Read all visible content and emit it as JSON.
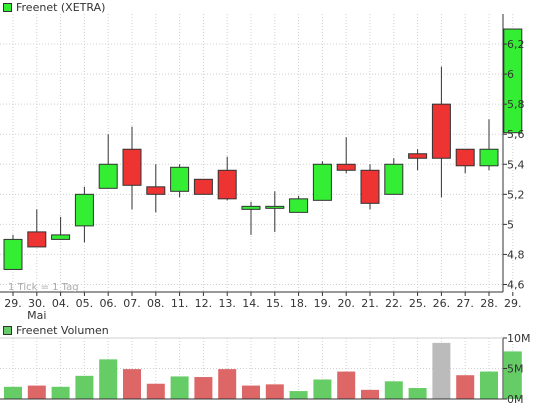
{
  "colors": {
    "up": "#33ee33",
    "down": "#ee3333",
    "volume_up": "#66cc66",
    "volume_down": "#dd6666",
    "volume_neutral": "#bbbbbb",
    "grid": "#d0d0d0",
    "axis": "#333333",
    "text": "#333333",
    "watermark": "#aaaaaa"
  },
  "watermark": "1 Tick = 1 Tag",
  "chart_data": [
    {
      "type": "candlestick",
      "legend": "Freenet (XETRA)",
      "ylim": [
        4.55,
        6.4
      ],
      "y_ticks": [
        4.6,
        4.8,
        5,
        5.2,
        5.4,
        5.6,
        5.8,
        6,
        6.2
      ],
      "y_tick_labels": [
        "4,6",
        "4,8",
        "5",
        "5,2",
        "5,4",
        "5,6",
        "5,8",
        "6",
        "6,2"
      ],
      "grid": true,
      "x_tick_labels": [
        "29.",
        "30.",
        "04.",
        "05.",
        "06.",
        "07.",
        "08.",
        "11.",
        "12.",
        "13.",
        "14.",
        "15.",
        "18.",
        "19.",
        "20.",
        "21.",
        "22.",
        "25.",
        "26.",
        "27.",
        "28.",
        "29."
      ],
      "x_sublabel": "Mai",
      "x_sublabel_index": 1,
      "candles": [
        {
          "open": 4.7,
          "close": 4.9,
          "high": 4.93,
          "low": 4.7
        },
        {
          "open": 4.95,
          "close": 4.85,
          "high": 5.1,
          "low": 4.85
        },
        {
          "open": 4.9,
          "close": 4.93,
          "high": 5.05,
          "low": 4.9
        },
        {
          "open": 4.99,
          "close": 5.2,
          "high": 5.25,
          "low": 4.88
        },
        {
          "open": 5.24,
          "close": 5.4,
          "high": 5.6,
          "low": 5.24
        },
        {
          "open": 5.5,
          "close": 5.26,
          "high": 5.65,
          "low": 5.1
        },
        {
          "open": 5.25,
          "close": 5.2,
          "high": 5.4,
          "low": 5.08
        },
        {
          "open": 5.22,
          "close": 5.38,
          "high": 5.4,
          "low": 5.18
        },
        {
          "open": 5.3,
          "close": 5.2,
          "high": 5.3,
          "low": 5.2
        },
        {
          "open": 5.36,
          "close": 5.17,
          "high": 5.45,
          "low": 5.16
        },
        {
          "open": 5.1,
          "close": 5.12,
          "high": 5.15,
          "low": 4.93
        },
        {
          "open": 5.12,
          "close": 5.12,
          "high": 5.22,
          "low": 4.95
        },
        {
          "open": 5.08,
          "close": 5.17,
          "high": 5.19,
          "low": 5.08
        },
        {
          "open": 5.16,
          "close": 5.4,
          "high": 5.42,
          "low": 5.16
        },
        {
          "open": 5.4,
          "close": 5.36,
          "high": 5.58,
          "low": 5.34
        },
        {
          "open": 5.36,
          "close": 5.14,
          "high": 5.4,
          "low": 5.1
        },
        {
          "open": 5.2,
          "close": 5.4,
          "high": 5.44,
          "low": 5.2
        },
        {
          "open": 5.47,
          "close": 5.44,
          "high": 5.5,
          "low": 5.36
        },
        {
          "open": 5.8,
          "close": 5.44,
          "high": 6.05,
          "low": 5.18
        },
        {
          "open": 5.5,
          "close": 5.39,
          "high": 5.5,
          "low": 5.34
        },
        {
          "open": 5.39,
          "close": 5.5,
          "high": 5.7,
          "low": 5.36
        },
        {
          "open": 5.61,
          "close": 6.3,
          "high": 6.3,
          "low": 5.61
        }
      ]
    },
    {
      "type": "bar",
      "legend": "Freenet Volumen",
      "ylim": [
        0,
        10
      ],
      "unit": "M",
      "y_ticks": [
        0,
        5,
        10
      ],
      "y_tick_labels": [
        "0M",
        "5M",
        "10M"
      ],
      "grid": true,
      "values": [
        2.0,
        2.2,
        2.0,
        3.8,
        6.5,
        4.9,
        2.5,
        3.7,
        3.6,
        4.9,
        2.2,
        2.4,
        1.3,
        3.2,
        4.5,
        1.5,
        2.9,
        1.8,
        9.2,
        3.9,
        4.5,
        7.8
      ],
      "colors": [
        "up",
        "down",
        "up",
        "up",
        "up",
        "down",
        "down",
        "up",
        "down",
        "down",
        "down",
        "down",
        "up",
        "up",
        "down",
        "down",
        "up",
        "up",
        "neutral",
        "down",
        "up",
        "up"
      ]
    }
  ]
}
